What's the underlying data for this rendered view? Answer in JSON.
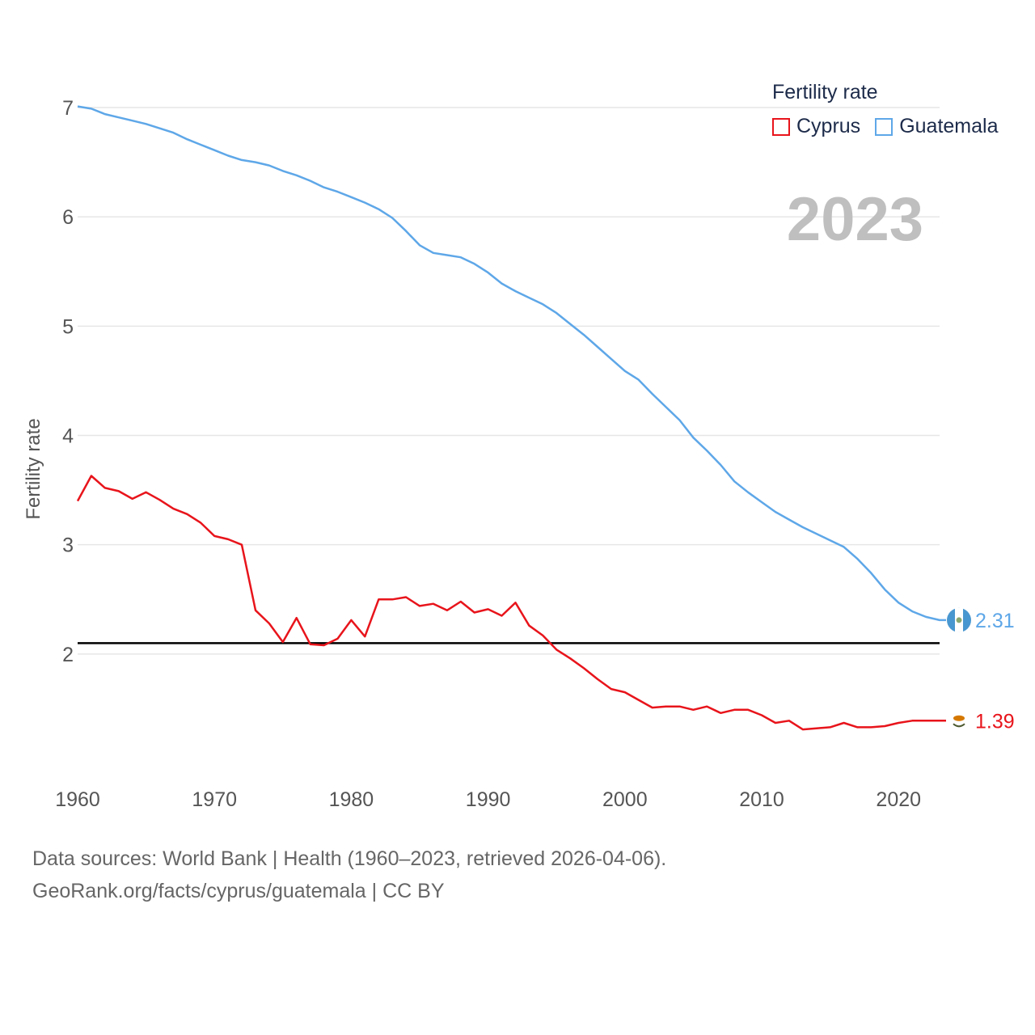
{
  "legend": {
    "title": "Fertility rate",
    "items": [
      {
        "name": "Cyprus",
        "color": "#e8141b"
      },
      {
        "name": "Guatemala",
        "color": "#5ea7e8"
      }
    ]
  },
  "year_label": "2023",
  "footer": {
    "line1": "Data sources: World Bank | Health (1960–2023, retrieved 2026-04-06).",
    "line2": "GeoRank.org/facts/cyprus/guatemala | CC BY"
  },
  "chart_data": {
    "type": "line",
    "title": "Fertility rate",
    "xlabel": "",
    "ylabel": "Fertility rate",
    "xlim": [
      1960,
      2023
    ],
    "ylim": [
      1,
      7
    ],
    "yticks": [
      2,
      3,
      4,
      5,
      6,
      7
    ],
    "xticks": [
      1960,
      1970,
      1980,
      1990,
      2000,
      2010,
      2020
    ],
    "grid": true,
    "legend_position": "top-right",
    "reference_line": {
      "y": 2.1,
      "color": "#000000"
    },
    "x": [
      1960,
      1961,
      1962,
      1963,
      1964,
      1965,
      1966,
      1967,
      1968,
      1969,
      1970,
      1971,
      1972,
      1973,
      1974,
      1975,
      1976,
      1977,
      1978,
      1979,
      1980,
      1981,
      1982,
      1983,
      1984,
      1985,
      1986,
      1987,
      1988,
      1989,
      1990,
      1991,
      1992,
      1993,
      1994,
      1995,
      1996,
      1997,
      1998,
      1999,
      2000,
      2001,
      2002,
      2003,
      2004,
      2005,
      2006,
      2007,
      2008,
      2009,
      2010,
      2011,
      2012,
      2013,
      2014,
      2015,
      2016,
      2017,
      2018,
      2019,
      2020,
      2021,
      2022,
      2023
    ],
    "series": [
      {
        "name": "Guatemala",
        "color": "#5ea7e8",
        "end_label": "2.31",
        "values": [
          7.01,
          6.99,
          6.94,
          6.91,
          6.88,
          6.85,
          6.81,
          6.77,
          6.71,
          6.66,
          6.61,
          6.56,
          6.52,
          6.5,
          6.47,
          6.42,
          6.38,
          6.33,
          6.27,
          6.23,
          6.18,
          6.13,
          6.07,
          5.99,
          5.87,
          5.74,
          5.67,
          5.65,
          5.63,
          5.57,
          5.49,
          5.39,
          5.32,
          5.26,
          5.2,
          5.12,
          5.02,
          4.92,
          4.81,
          4.7,
          4.59,
          4.51,
          4.38,
          4.26,
          4.14,
          3.98,
          3.86,
          3.73,
          3.58,
          3.48,
          3.39,
          3.3,
          3.23,
          3.16,
          3.1,
          3.04,
          2.98,
          2.87,
          2.74,
          2.59,
          2.47,
          2.39,
          2.34,
          2.31
        ]
      },
      {
        "name": "Cyprus",
        "color": "#e8141b",
        "end_label": "1.39",
        "values": [
          3.4,
          3.63,
          3.52,
          3.49,
          3.42,
          3.48,
          3.41,
          3.33,
          3.28,
          3.2,
          3.08,
          3.05,
          3.0,
          2.4,
          2.28,
          2.11,
          2.33,
          2.09,
          2.08,
          2.14,
          2.31,
          2.16,
          2.5,
          2.5,
          2.52,
          2.44,
          2.46,
          2.4,
          2.48,
          2.38,
          2.41,
          2.35,
          2.47,
          2.26,
          2.17,
          2.04,
          1.96,
          1.87,
          1.77,
          1.68,
          1.65,
          1.58,
          1.51,
          1.52,
          1.52,
          1.49,
          1.52,
          1.46,
          1.49,
          1.49,
          1.44,
          1.37,
          1.39,
          1.31,
          1.32,
          1.33,
          1.37,
          1.33,
          1.33,
          1.34,
          1.37,
          1.39,
          1.39,
          1.39
        ]
      }
    ]
  }
}
